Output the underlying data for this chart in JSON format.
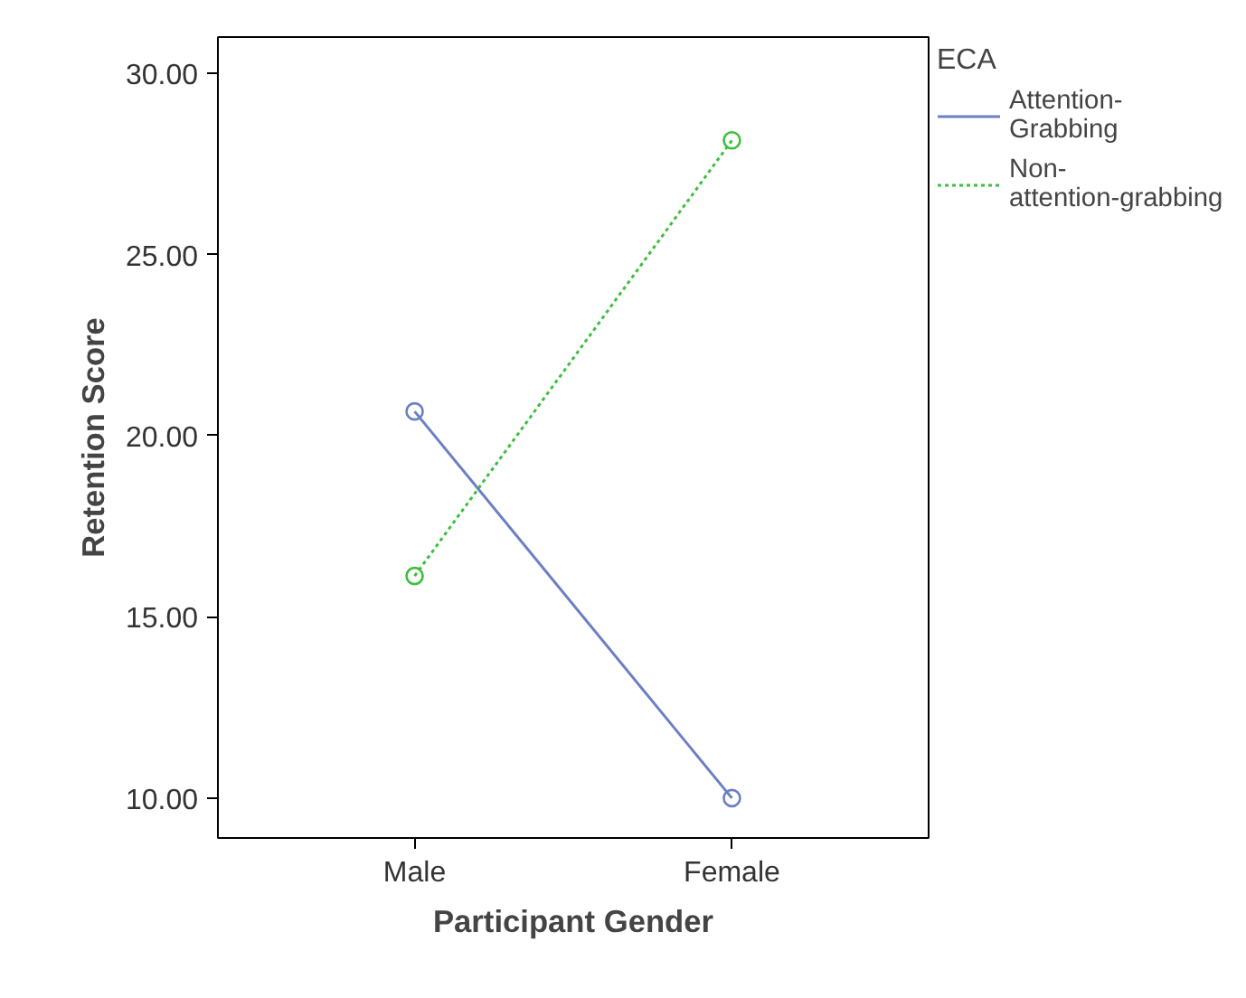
{
  "chart_data": {
    "type": "line",
    "xlabel": "Participant Gender",
    "ylabel": "Retention Score",
    "legend_title": "ECA",
    "categories": [
      "Male",
      "Female"
    ],
    "series": [
      {
        "name": "Attention-Grabbing",
        "color": "#6b7fc4",
        "values": [
          20.67,
          10.0
        ],
        "line_style": "solid"
      },
      {
        "name": "Non-attention-grabbing",
        "color": "#3cbf3c",
        "values": [
          16.13,
          28.15
        ],
        "line_style": "dotted"
      }
    ],
    "ylim": [
      8.9,
      31.0
    ],
    "yticks": [
      {
        "value": 10,
        "label": "10.00"
      },
      {
        "value": 15,
        "label": "15.00"
      },
      {
        "value": 20,
        "label": "20.00"
      },
      {
        "value": 25,
        "label": "25.00"
      },
      {
        "value": 30,
        "label": "30.00"
      }
    ],
    "grid": false,
    "legend": "right",
    "marker": "circle"
  }
}
